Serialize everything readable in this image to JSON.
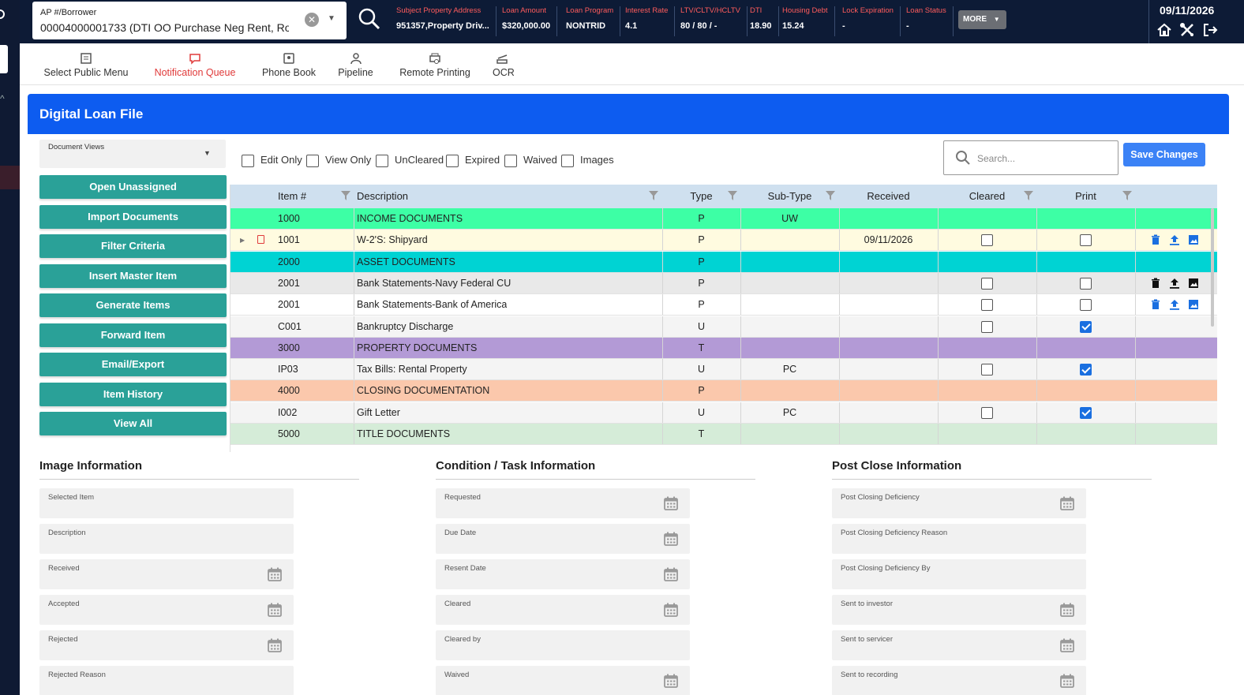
{
  "topbar": {
    "loan_label": "AP #/Borrower",
    "loan_value": "00004000001733 (DTI OO Purchase Neg Rent, Ro:",
    "fields": [
      {
        "key": "Subject Property Address",
        "value": "951357,Property Driv..."
      },
      {
        "key": "Loan Amount",
        "value": "$320,000.00"
      },
      {
        "key": "Loan Program",
        "value": "NONTRID"
      },
      {
        "key": "Interest Rate",
        "value": "4.1"
      },
      {
        "key": "LTV/CLTV/HCLTV",
        "value": "80 / 80 / -"
      },
      {
        "key": "DTI",
        "value": "18.90"
      },
      {
        "key": "Housing Debt",
        "value": "15.24"
      },
      {
        "key": "Lock Expiration",
        "value": "-"
      },
      {
        "key": "Loan Status",
        "value": "-"
      }
    ],
    "more_label": "MORE",
    "date": "09/11/2026"
  },
  "nav": {
    "items": [
      {
        "label": "Select Public Menu",
        "icon": "menu-list-icon"
      },
      {
        "label": "Notification Queue",
        "icon": "chat-bubble-icon",
        "active": true
      },
      {
        "label": "Phone Book",
        "icon": "contact-card-icon"
      },
      {
        "label": "Pipeline",
        "icon": "person-icon"
      },
      {
        "label": "Remote Printing",
        "icon": "printer-search-icon"
      },
      {
        "label": "OCR",
        "icon": "scanner-icon"
      }
    ]
  },
  "card": {
    "title": "Digital Loan File",
    "doc_views_label": "Document Views",
    "side_buttons": [
      "Open Unassigned",
      "Import Documents",
      "Filter Criteria",
      "Insert Master Item",
      "Generate Items",
      "Forward Item",
      "Email/Export",
      "Item History",
      "View All"
    ],
    "filters": [
      "Edit Only",
      "View Only",
      "UnCleared",
      "Expired",
      "Waived",
      "Images"
    ],
    "search_placeholder": "Search...",
    "save_label": "Save Changes"
  },
  "grid": {
    "columns": [
      "Item #",
      "Description",
      "Type",
      "Sub-Type",
      "Received",
      "Cleared",
      "Print"
    ],
    "rows": [
      {
        "item": "1000",
        "desc": "INCOME DOCUMENTS",
        "type": "P",
        "sub": "UW",
        "received": "",
        "cleared": null,
        "print": null,
        "bg": "#3dffa5",
        "group": true
      },
      {
        "item": "1001",
        "desc": "W-2'S: Shipyard",
        "type": "P",
        "sub": "",
        "received": "09/11/2026",
        "cleared": false,
        "print": false,
        "bg": "#fffbe0",
        "actions": "blue",
        "marker": true
      },
      {
        "item": "2000",
        "desc": "ASSET DOCUMENTS",
        "type": "P",
        "sub": "",
        "received": "",
        "cleared": null,
        "print": null,
        "bg": "#00d3d3",
        "group": true
      },
      {
        "item": "2001",
        "desc": "Bank Statements-Navy Federal CU",
        "type": "P",
        "sub": "",
        "received": "",
        "cleared": false,
        "print": false,
        "bg": "#e9e9e9",
        "actions": "dark"
      },
      {
        "item": "2001",
        "desc": "Bank Statements-Bank of America",
        "type": "P",
        "sub": "",
        "received": "",
        "cleared": false,
        "print": false,
        "bg": "#ffffff",
        "actions": "blue"
      },
      {
        "item": "C001",
        "desc": "Bankruptcy Discharge",
        "type": "U",
        "sub": "",
        "received": "",
        "cleared": false,
        "print": true,
        "bg": "#f4f4f4"
      },
      {
        "item": "3000",
        "desc": "PROPERTY DOCUMENTS",
        "type": "T",
        "sub": "",
        "received": "",
        "cleared": null,
        "print": null,
        "bg": "#b39ad6",
        "group": true
      },
      {
        "item": "IP03",
        "desc": "Tax Bills: Rental Property",
        "type": "U",
        "sub": "PC",
        "received": "",
        "cleared": false,
        "print": true,
        "bg": "#f4f4f4"
      },
      {
        "item": "4000",
        "desc": "CLOSING DOCUMENTATION",
        "type": "P",
        "sub": "",
        "received": "",
        "cleared": null,
        "print": null,
        "bg": "#fbc8ac",
        "group": true
      },
      {
        "item": "I002",
        "desc": "Gift Letter",
        "type": "U",
        "sub": "PC",
        "received": "",
        "cleared": false,
        "print": true,
        "bg": "#f4f4f4"
      },
      {
        "item": "5000",
        "desc": "TITLE DOCUMENTS",
        "type": "T",
        "sub": "",
        "received": "",
        "cleared": null,
        "print": null,
        "bg": "#d5ecd8",
        "group": true
      }
    ]
  },
  "sections": {
    "image_info": {
      "title": "Image Information",
      "fields": [
        "Selected Item",
        "Description",
        "Received",
        "Accepted",
        "Rejected",
        "Rejected Reason"
      ]
    },
    "condition_info": {
      "title": "Condition / Task Information",
      "fields": [
        "Requested",
        "Due Date",
        "Resent Date",
        "Cleared",
        "Cleared by",
        "Waived"
      ]
    },
    "post_close_info": {
      "title": "Post Close Information",
      "fields": [
        "Post Closing Deficiency",
        "Post Closing Deficiency Reason",
        "Post Closing Deficiency By",
        "Sent to investor",
        "Sent to servicer",
        "Sent to recording"
      ]
    }
  },
  "colors": {
    "topbar": "#0d1b36",
    "accent": "#0d5cf0",
    "button": "#2aa198",
    "active_nav": "#e03a3a",
    "field_key": "#ff5c5c"
  }
}
